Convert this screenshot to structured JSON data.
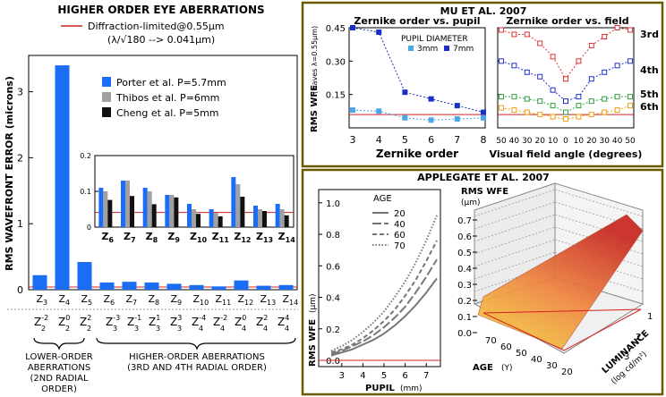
{
  "left": {
    "title": "HIGHER ORDER  EYE ABERRATIONS",
    "diffraction_label": "Diffraction-limited@0.55µm",
    "diffraction_note": "(λ/√180 --> 0.041µm)",
    "ylabel": "RMS  WAVEFRONT ERROR (microns)",
    "legend": [
      "Porter et al.  P=5.7mm",
      "Thibos et al.  P=6mm",
      "Cheng et al.  P=5mm"
    ],
    "group_lower": [
      "LOWER-ORDER",
      "ABERRATIONS",
      "(2ND RADIAL",
      "ORDER)"
    ],
    "group_higher": [
      "HIGHER-ORDER ABERRATIONS",
      "(3RD AND 4TH RADIAL ORDER)"
    ],
    "zernike_symbols": [
      {
        "sup": "-2",
        "sub": "2"
      },
      {
        "sup": "0",
        "sub": "2"
      },
      {
        "sup": "2",
        "sub": "2"
      },
      {
        "sup": "-3",
        "sub": "3"
      },
      {
        "sup": "-1",
        "sub": "3"
      },
      {
        "sup": "1",
        "sub": "3"
      },
      {
        "sup": "3",
        "sub": "3"
      },
      {
        "sup": "-4",
        "sub": "4"
      },
      {
        "sup": "-2",
        "sub": "4"
      },
      {
        "sup": "0",
        "sub": "4"
      },
      {
        "sup": "2",
        "sub": "4"
      },
      {
        "sup": "4",
        "sub": "4"
      }
    ]
  },
  "mu": {
    "header": "MU ET AL. 2007",
    "left_title": "Zernike order vs. pupil",
    "right_title": "Zernike order vs. field",
    "ylabel": "RMS WFE",
    "ylabel_units": "(waves λ=0.55µm)",
    "legend_title": "PUPIL DIAMETER",
    "legend": [
      "3mm",
      "7mm"
    ],
    "xlabel_left": "Zernike order",
    "xlabel_right": "Visual field angle (degrees)",
    "order_labels": [
      "3rd",
      "4th",
      "5th",
      "6th"
    ]
  },
  "applegate": {
    "header": "APPLEGATE ET AL. 2007",
    "age_title": "AGE",
    "ages": [
      "20",
      "40",
      "60",
      "70"
    ],
    "ylabel": "RMS WFE",
    "ylabel_units": "(µm)",
    "xlabel": "PUPIL",
    "xlabel_units": "(mm)",
    "surface_title": "RMS WFE",
    "surface_units": "(µm)",
    "age_axis": "AGE",
    "age_axis_units": "(Y)",
    "lum_axis": "LUMINANCE",
    "lum_axis_units": "(log cd/m²)"
  },
  "colors": {
    "blue": "#1a6ef5",
    "gray": "#a0a0a0",
    "black": "#111111",
    "red": "#d42020",
    "olive": "#6a5a00"
  },
  "chart_data": [
    {
      "type": "bar",
      "title": "HIGHER ORDER  EYE ABERRATIONS",
      "ylabel": "RMS  WAVEFRONT ERROR (microns)",
      "categories": [
        "3",
        "4",
        "5",
        "6",
        "7",
        "8",
        "9",
        "10",
        "11",
        "12",
        "13",
        "14"
      ],
      "series": [
        {
          "name": "Porter et al.  P=5.7mm",
          "values": [
            0.22,
            3.4,
            0.42,
            0.11,
            0.12,
            0.11,
            0.09,
            0.07,
            0.05,
            0.14,
            0.06,
            0.07
          ]
        }
      ],
      "yticks": [
        0,
        1,
        2,
        3
      ],
      "ylim": [
        0,
        3.55
      ],
      "reference_line": 0.041
    },
    {
      "type": "bar",
      "inset": true,
      "categories": [
        "6",
        "7",
        "8",
        "9",
        "10",
        "11",
        "12",
        "13",
        "14"
      ],
      "series": [
        {
          "name": "Porter et al.  P=5.7mm",
          "values": [
            0.11,
            0.13,
            0.11,
            0.09,
            0.065,
            0.05,
            0.14,
            0.06,
            0.065
          ]
        },
        {
          "name": "Thibos et al.  P=6mm",
          "values": [
            0.1,
            0.13,
            0.1,
            0.09,
            0.05,
            0.04,
            0.12,
            0.05,
            0.05
          ]
        },
        {
          "name": "Cheng et al.  P=5mm",
          "values": [
            0.076,
            0.087,
            0.064,
            0.083,
            0.037,
            0.03,
            0.085,
            0.045,
            0.033
          ]
        }
      ],
      "yticks": [
        "0",
        "0.1",
        "0.2"
      ],
      "ylim": [
        0,
        0.2
      ],
      "reference_line": 0.041
    },
    {
      "type": "line",
      "title": "Zernike order vs. pupil",
      "xlabel": "Zernike order",
      "x": [
        3,
        4,
        5,
        6,
        7,
        8
      ],
      "series": [
        {
          "name": "3mm",
          "values": [
            0.08,
            0.075,
            0.045,
            0.035,
            0.04,
            0.045
          ]
        },
        {
          "name": "7mm",
          "values": [
            0.45,
            0.43,
            0.16,
            0.13,
            0.1,
            0.07
          ]
        }
      ],
      "ylim": [
        0,
        0.45
      ],
      "yticks": [
        "0.15",
        "0.30",
        "0.45"
      ],
      "reference_line": 0.06
    },
    {
      "type": "line",
      "title": "Zernike order vs. field",
      "xlabel": "Visual field angle (degrees)",
      "xtick_labels": [
        "50",
        "40",
        "30",
        "20",
        "10",
        "0",
        "10",
        "20",
        "30",
        "40",
        "50"
      ],
      "series": [
        {
          "name": "3rd",
          "values": [
            0.44,
            0.42,
            0.42,
            0.38,
            0.32,
            0.22,
            0.3,
            0.37,
            0.41,
            0.45,
            0.44
          ]
        },
        {
          "name": "4th",
          "values": [
            0.3,
            0.28,
            0.25,
            0.23,
            0.17,
            0.12,
            0.14,
            0.22,
            0.25,
            0.28,
            0.3
          ]
        },
        {
          "name": "5th",
          "values": [
            0.14,
            0.14,
            0.13,
            0.12,
            0.1,
            0.07,
            0.1,
            0.12,
            0.13,
            0.14,
            0.14
          ]
        },
        {
          "name": "6th",
          "values": [
            0.09,
            0.08,
            0.07,
            0.06,
            0.05,
            0.04,
            0.05,
            0.06,
            0.07,
            0.08,
            0.1
          ]
        }
      ],
      "ylim": [
        0,
        0.45
      ],
      "reference_line": 0.06
    },
    {
      "type": "line",
      "xlabel": "PUPIL (mm)",
      "ylabel": "RMS WFE (µm)",
      "x": [
        2.5,
        3,
        3.5,
        4,
        4.5,
        5,
        5.5,
        6,
        6.5,
        7,
        7.5
      ],
      "series": [
        {
          "name": "20",
          "values": [
            0.03,
            0.05,
            0.07,
            0.1,
            0.13,
            0.17,
            0.22,
            0.28,
            0.35,
            0.43,
            0.52
          ]
        },
        {
          "name": "40",
          "values": [
            0.04,
            0.06,
            0.09,
            0.12,
            0.16,
            0.21,
            0.27,
            0.34,
            0.43,
            0.53,
            0.64
          ]
        },
        {
          "name": "60",
          "values": [
            0.05,
            0.07,
            0.1,
            0.14,
            0.19,
            0.25,
            0.32,
            0.41,
            0.51,
            0.63,
            0.76
          ]
        },
        {
          "name": "70",
          "values": [
            0.06,
            0.09,
            0.13,
            0.18,
            0.24,
            0.31,
            0.4,
            0.5,
            0.62,
            0.76,
            0.92
          ]
        }
      ],
      "xticks": [
        "3",
        "4",
        "5",
        "6",
        "7"
      ],
      "yticks": [
        "0.0",
        "0.2",
        "0.4",
        "0.6",
        "0.8",
        "1.0"
      ],
      "ylim": [
        0,
        1.05
      ]
    },
    {
      "type": "surface",
      "title": "RMS WFE (µm)",
      "zticks": [
        "0.0",
        "0.1",
        "0.2",
        "0.3",
        "0.4",
        "0.5",
        "0.6",
        "0.7"
      ],
      "age_ticks": [
        "20",
        "30",
        "40",
        "50",
        "60",
        "70"
      ],
      "luminance_ticks": [
        "1",
        "2",
        "3"
      ]
    }
  ]
}
